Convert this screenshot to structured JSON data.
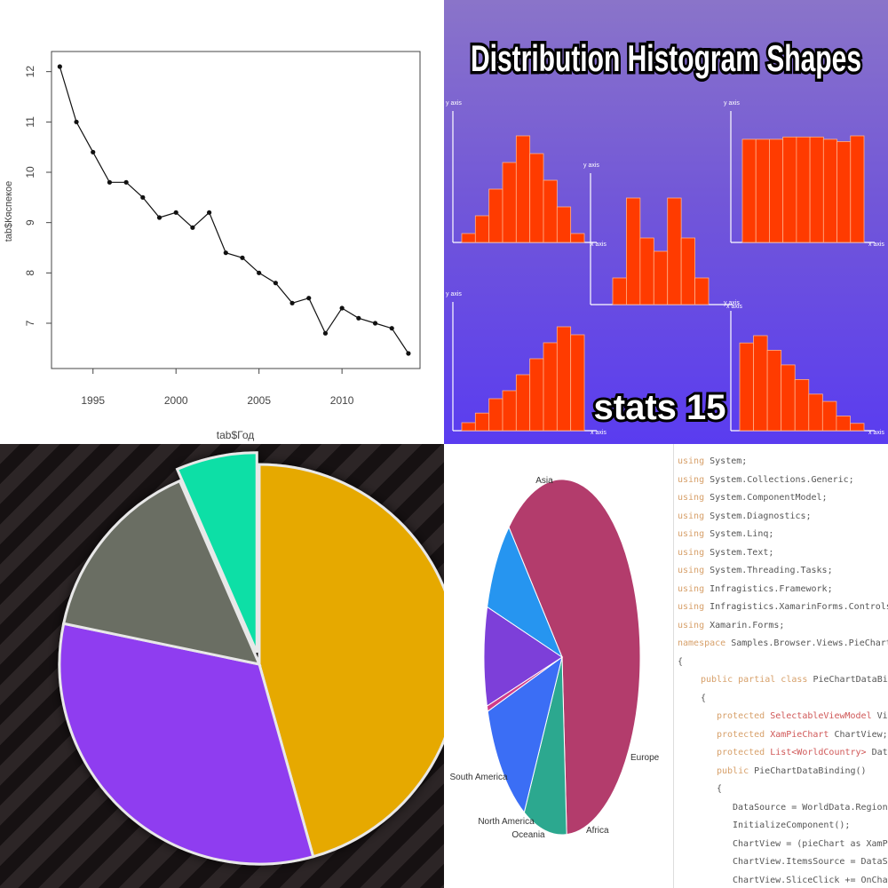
{
  "chart_data": [
    {
      "type": "line",
      "title": "",
      "xlabel": "tab$Год",
      "ylabel": "tab$Кяспекое",
      "xlim": [
        1992.5,
        2014.7
      ],
      "ylim": [
        6.1,
        12.4
      ],
      "x_ticks": [
        1995,
        2000,
        2005,
        2010
      ],
      "y_ticks": [
        7,
        8,
        9,
        10,
        11,
        12
      ],
      "x": [
        1993,
        1994,
        1995,
        1996,
        1997,
        1998,
        1999,
        2000,
        2001,
        2002,
        2003,
        2004,
        2005,
        2006,
        2007,
        2008,
        2009,
        2010,
        2011,
        2012,
        2013,
        2014
      ],
      "y": [
        12.1,
        11.0,
        10.4,
        9.8,
        9.8,
        9.5,
        9.1,
        9.2,
        8.9,
        9.2,
        8.4,
        8.3,
        8.0,
        7.8,
        7.4,
        7.5,
        6.8,
        7.3,
        7.1,
        7.0,
        6.9,
        6.4
      ],
      "markers": true,
      "grid": false
    },
    {
      "type": "bar",
      "title": "Distribution Histogram Shapes",
      "annotation": "stats 15",
      "axis_x_label": "x axis",
      "axis_y_label": "y axis",
      "bar_color": "#ff3b00",
      "histograms": [
        {
          "shape": "symmetric",
          "values": [
            1,
            3,
            6,
            9,
            12,
            10,
            7,
            4,
            1
          ]
        },
        {
          "shape": "bimodal",
          "values": [
            2,
            8,
            5,
            4,
            8,
            5,
            2
          ]
        },
        {
          "shape": "uniform",
          "values": [
            9,
            9,
            9,
            9.2,
            9.2,
            9.2,
            9,
            8.8,
            9.3
          ]
        },
        {
          "shape": "left-skewed",
          "values": [
            1,
            2.2,
            4,
            5,
            7,
            9,
            11,
            13,
            12
          ]
        },
        {
          "shape": "right-skewed",
          "values": [
            12,
            13,
            11,
            9,
            7,
            5,
            4,
            2,
            1
          ]
        }
      ]
    },
    {
      "type": "pie",
      "title": "",
      "legend": "none",
      "values": [
        42,
        30,
        14,
        6
      ],
      "colors": [
        "#e6a900",
        "#8f3cf0",
        "#6b6e63",
        "#11dfa6"
      ],
      "explode": [
        0,
        0,
        0,
        0.06
      ]
    },
    {
      "type": "pie",
      "title": "",
      "categories": [
        "Asia",
        "Europe",
        "Africa",
        "Oceania",
        "North America",
        "South America"
      ],
      "values": [
        61,
        9,
        12,
        0.5,
        9,
        8.5
      ],
      "colors": [
        "#b33c6c",
        "#2ca88f",
        "#3b6ef5",
        "#d13c8a",
        "#7d3fd9",
        "#2695f0"
      ]
    }
  ],
  "code_editor": {
    "lines": [
      {
        "kw": "using",
        "text": " System;"
      },
      {
        "kw": "using",
        "text": " System.Collections.Generic;"
      },
      {
        "kw": "using",
        "text": " System.ComponentModel;"
      },
      {
        "kw": "using",
        "text": " System.Diagnostics;"
      },
      {
        "kw": "using",
        "text": " System.Linq;"
      },
      {
        "kw": "using",
        "text": " System.Text;"
      },
      {
        "kw": "using",
        "text": " System.Threading.Tasks;"
      },
      {
        "kw": "using",
        "text": " Infragistics.Framework;"
      },
      {
        "kw": "using",
        "text": " Infragistics.XamarinForms.Controls.Charts;"
      },
      {
        "kw": "using",
        "text": " Xamarin.Forms;"
      },
      {
        "kw": "namespace",
        "text": " Samples.Browser.Views.PieCharts"
      },
      {
        "kw": "",
        "text": "{"
      },
      {
        "kw": "public partial class",
        "text": " PieChartDataBinding :"
      },
      {
        "kw": "",
        "text": "{"
      },
      {
        "kw": "protected",
        "type": " SelectableViewModel",
        "text": " ViewModel"
      },
      {
        "kw": "protected",
        "type": " XamPieChart",
        "text": " ChartView;"
      },
      {
        "kw": "protected",
        "type": " List<WorldCountry>",
        "text": " DataSource"
      },
      {
        "kw": "public",
        "text": " PieChartDataBinding()"
      },
      {
        "kw": "",
        "text": "{"
      },
      {
        "kw": "",
        "text": "DataSource = WorldData.Regions;"
      },
      {
        "kw": "",
        "text": "InitializeComponent();"
      },
      {
        "kw": "",
        "text": "ChartView = (pieChart as XamPieChart"
      },
      {
        "kw": "",
        "text": "ChartView.ItemsSource = DataSource;"
      },
      {
        "kw": "",
        "text": "ChartView.SliceClick += OnChartSlice"
      }
    ]
  }
}
